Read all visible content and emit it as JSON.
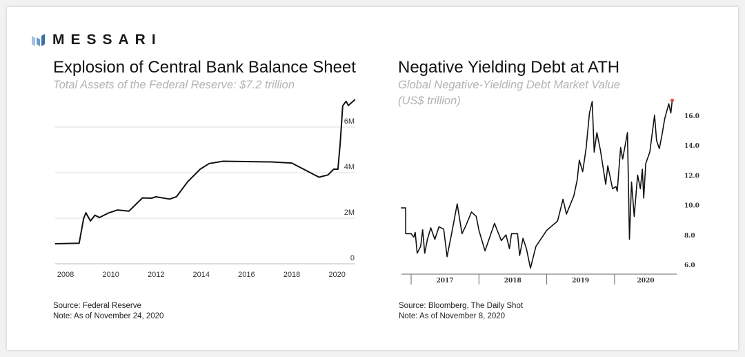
{
  "brand": {
    "name": "MESSARI",
    "logo_color": "#4a7fb5"
  },
  "left": {
    "title": "Explosion of Central Bank Balance Sheet",
    "subtitle": "Total Assets of the Federal Reserve: $7.2 trillion",
    "source": "Source: Federal Reserve",
    "note": "Note: As of November 24, 2020"
  },
  "right": {
    "title": "Negative Yielding Debt at ATH",
    "subtitle_line1": "Global Negative-Yielding Debt Market Value",
    "subtitle_line2": "(US$ trillion)",
    "source": "Source: Bloomberg, The Daily Shot",
    "note": "Note: As of November 8, 2020"
  },
  "chart_data": [
    {
      "type": "line",
      "title": "Explosion of Central Bank Balance Sheet",
      "xlim": [
        2007.5,
        2020.9
      ],
      "ylim": [
        0,
        7.5
      ],
      "x_ticks": [
        "2008",
        "2010",
        "2012",
        "2014",
        "2016",
        "2018",
        "2020"
      ],
      "y_ticks": [
        "0",
        "2M",
        "4M",
        "6M"
      ],
      "y_tick_values": [
        0,
        2,
        4,
        6
      ],
      "grid": "horizontal",
      "line_color": "#111111",
      "x": [
        2007.54,
        2008.6,
        2008.8,
        2008.9,
        2009.1,
        2009.3,
        2009.5,
        2009.9,
        2010.3,
        2010.8,
        2011.4,
        2011.8,
        2012.0,
        2012.6,
        2012.9,
        2013.4,
        2013.95,
        2014.35,
        2014.96,
        2017.1,
        2018.0,
        2019.2,
        2019.6,
        2019.85,
        2020.04,
        2020.14,
        2020.25,
        2020.4,
        2020.5,
        2020.8
      ],
      "y": [
        0.88,
        0.9,
        1.98,
        2.24,
        1.88,
        2.13,
        2.03,
        2.23,
        2.36,
        2.31,
        2.89,
        2.88,
        2.94,
        2.84,
        2.94,
        3.6,
        4.15,
        4.4,
        4.5,
        4.47,
        4.42,
        3.8,
        3.9,
        4.15,
        4.15,
        5.3,
        6.93,
        7.13,
        6.95,
        7.21
      ]
    },
    {
      "type": "line",
      "title": "Negative Yielding Debt at ATH",
      "xlim": [
        2016.85,
        2020.9
      ],
      "ylim": [
        5.5,
        17.5
      ],
      "x_ticks": [
        "2017",
        "2018",
        "2019",
        "2020"
      ],
      "y_ticks": [
        "6.0",
        "8.0",
        "10.0",
        "12.0",
        "14.0",
        "16.0"
      ],
      "y_tick_values": [
        6,
        8,
        10,
        12,
        14,
        16
      ],
      "grid": "none",
      "line_color": "#111111",
      "highlight_color": "#e0463c",
      "x": [
        2016.85,
        2016.92,
        2016.921,
        2017.0,
        2017.04,
        2017.06,
        2017.09,
        2017.14,
        2017.17,
        2017.2,
        2017.24,
        2017.29,
        2017.35,
        2017.41,
        2017.48,
        2017.53,
        2017.6,
        2017.68,
        2017.75,
        2017.8,
        2017.89,
        2017.96,
        2018.0,
        2018.09,
        2018.23,
        2018.33,
        2018.4,
        2018.45,
        2018.48,
        2018.57,
        2018.6,
        2018.65,
        2018.7,
        2018.76,
        2018.84,
        2019.0,
        2019.16,
        2019.24,
        2019.29,
        2019.4,
        2019.45,
        2019.48,
        2019.53,
        2019.58,
        2019.63,
        2019.67,
        2019.7,
        2019.74,
        2019.79,
        2019.87,
        2019.9,
        2019.97,
        2020.02,
        2020.04,
        2020.09,
        2020.12,
        2020.19,
        2020.22,
        2020.25,
        2020.29,
        2020.34,
        2020.38,
        2020.41,
        2020.43,
        2020.46,
        2020.52,
        2020.59,
        2020.62,
        2020.66,
        2020.7,
        2020.74,
        2020.8,
        2020.83,
        2020.85
      ],
      "y": [
        9.84,
        9.84,
        8.11,
        8.11,
        7.88,
        8.2,
        6.8,
        7.26,
        8.37,
        6.8,
        7.73,
        8.5,
        7.73,
        8.57,
        8.42,
        6.57,
        8.19,
        10.11,
        8.11,
        8.57,
        9.57,
        9.27,
        8.34,
        6.96,
        8.8,
        7.65,
        8.03,
        7.11,
        8.11,
        8.11,
        6.65,
        7.8,
        7.11,
        5.8,
        7.26,
        8.34,
        8.96,
        10.42,
        9.42,
        10.65,
        11.73,
        13.04,
        12.27,
        13.81,
        16.2,
        16.97,
        13.58,
        14.89,
        13.73,
        11.42,
        12.66,
        11.12,
        11.27,
        10.96,
        13.89,
        13.12,
        14.89,
        7.73,
        11.58,
        9.27,
        12.04,
        11.12,
        12.43,
        10.5,
        12.81,
        13.58,
        16.05,
        14.35,
        13.81,
        14.74,
        15.82,
        16.82,
        16.2,
        17.05
      ]
    }
  ]
}
